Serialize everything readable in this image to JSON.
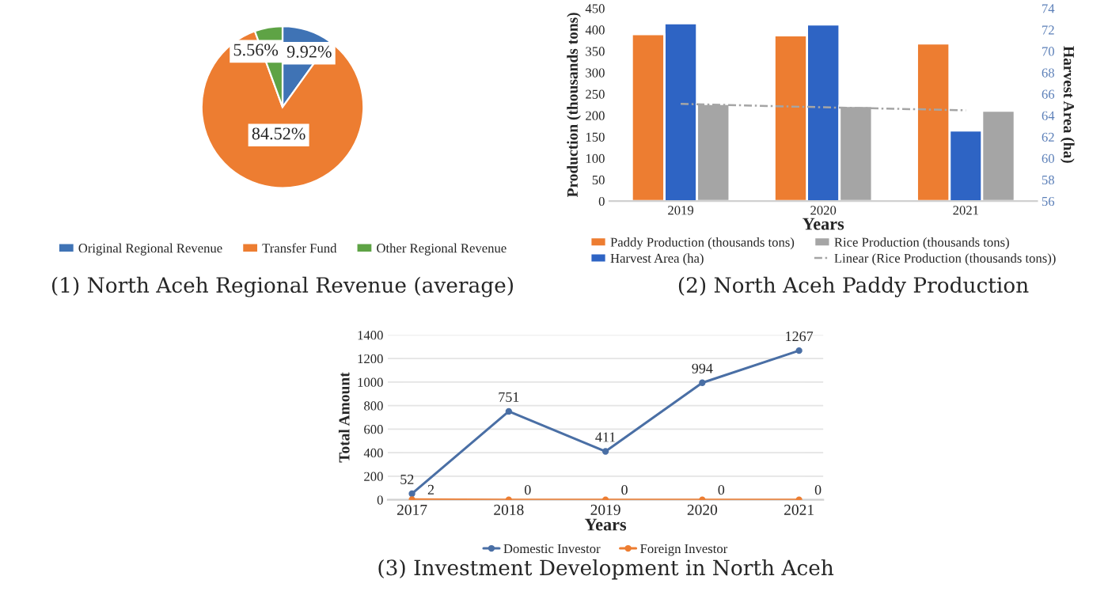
{
  "chart_data": [
    {
      "type": "pie",
      "title": "(1) North Aceh Regional Revenue (average)",
      "categories": [
        "Original Regional Revenue",
        "Transfer Fund",
        "Other Regional Revenue"
      ],
      "values": [
        9.92,
        84.52,
        5.56
      ],
      "colors": [
        "#3f73b5",
        "#ed7d31",
        "#5ea345"
      ],
      "value_labels": [
        "9.92%",
        "84.52%",
        "5.56%"
      ],
      "legend": "bottom"
    },
    {
      "type": "bar",
      "title": "(2) North Aceh Paddy Production",
      "xlabel": "Years",
      "ylabel": "Production (thousands tons)",
      "y2label": "Harvest Area (ha)",
      "categories": [
        "2019",
        "2020",
        "2021"
      ],
      "ylim": [
        0,
        450
      ],
      "yticks": [
        0,
        50,
        100,
        150,
        200,
        250,
        300,
        350,
        400,
        450
      ],
      "y2lim": [
        56,
        74
      ],
      "y2ticks": [
        56,
        58,
        60,
        62,
        64,
        66,
        68,
        70,
        72,
        74
      ],
      "legend": "bottom",
      "series": [
        {
          "name": "Paddy Production (thousands tons)",
          "color": "#ed7d31",
          "values": [
            390,
            387,
            368
          ]
        },
        {
          "name": "Harvest Area (ha)",
          "color": "#2e64c4",
          "values": [
            72.6,
            72.5,
            62.6
          ],
          "axis": "y2"
        },
        {
          "name": "Rice Production (thousands tons)",
          "color": "#a5a5a5",
          "values": [
            227,
            222,
            211
          ]
        },
        {
          "name": "Linear (Rice Production (thousands tons))",
          "type": "line",
          "color": "#a5a5a5",
          "line_style": "dashed",
          "values": [
            227,
            219,
            212
          ]
        }
      ]
    },
    {
      "type": "line",
      "title": "(3) Investment Development in North Aceh",
      "xlabel": "Years",
      "ylabel": "Total Amount",
      "categories": [
        "2017",
        "2018",
        "2019",
        "2020",
        "2021"
      ],
      "ylim": [
        0,
        1400
      ],
      "yticks": [
        0,
        200,
        400,
        600,
        800,
        1000,
        1200,
        1400
      ],
      "grid": "y",
      "marker": "circle",
      "data_labels": true,
      "legend": "bottom",
      "series": [
        {
          "name": "Domestic Investor",
          "color": "#4a6fa5",
          "values": [
            52,
            751,
            411,
            994,
            1267
          ]
        },
        {
          "name": "Foreign Investor",
          "color": "#ed7d31",
          "values": [
            2,
            0,
            0,
            0,
            0
          ]
        }
      ]
    }
  ]
}
